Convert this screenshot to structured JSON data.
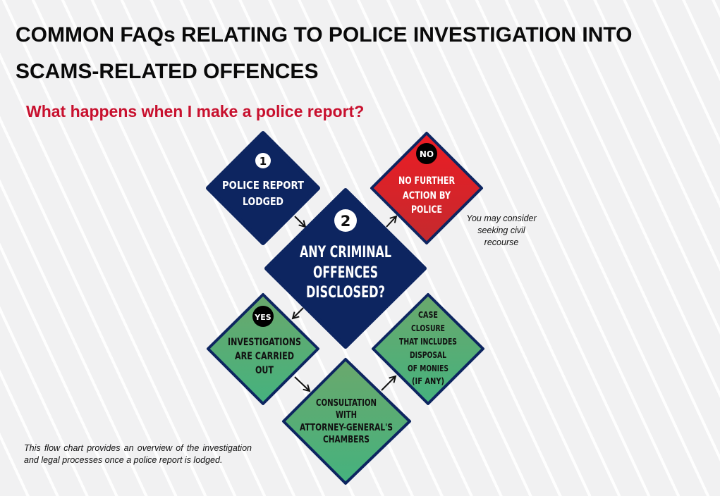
{
  "title": {
    "line1": "COMMON FAQs RELATING TO POLICE INVESTIGATION INTO",
    "line2": "SCAMS-RELATED OFFENCES"
  },
  "subtitle": "What happens when I make a police report?",
  "colors": {
    "navy": "#0d2560",
    "red": "#d42027",
    "green": "#5fae76",
    "subtitle": "#c8102e"
  },
  "flowchart": {
    "step1": {
      "badge": "1",
      "lines": [
        "POLICE REPORT",
        "LODGED"
      ]
    },
    "step2": {
      "badge": "2",
      "lines": [
        "ANY CRIMINAL",
        "OFFENCES",
        "DISCLOSED?"
      ]
    },
    "no_branch": {
      "badge": "NO",
      "lines": [
        "NO FURTHER",
        "ACTION BY",
        "POLICE"
      ]
    },
    "yes_branch": {
      "badge": "YES",
      "lines": [
        "INVESTIGATIONS",
        "ARE CARRIED",
        "OUT"
      ]
    },
    "consultation": {
      "lines": [
        "CONSULTATION",
        "WITH",
        "ATTORNEY-GENERAL'S",
        "CHAMBERS"
      ]
    },
    "closure": {
      "lines": [
        "CASE",
        "CLOSURE",
        "THAT INCLUDES",
        "DISPOSAL",
        "OF MONIES",
        "(IF ANY)"
      ]
    }
  },
  "civil_note": "You may consider seeking civil recourse",
  "footnote": "This flow chart provides an overview of the investigation and legal processes once a police report is lodged."
}
